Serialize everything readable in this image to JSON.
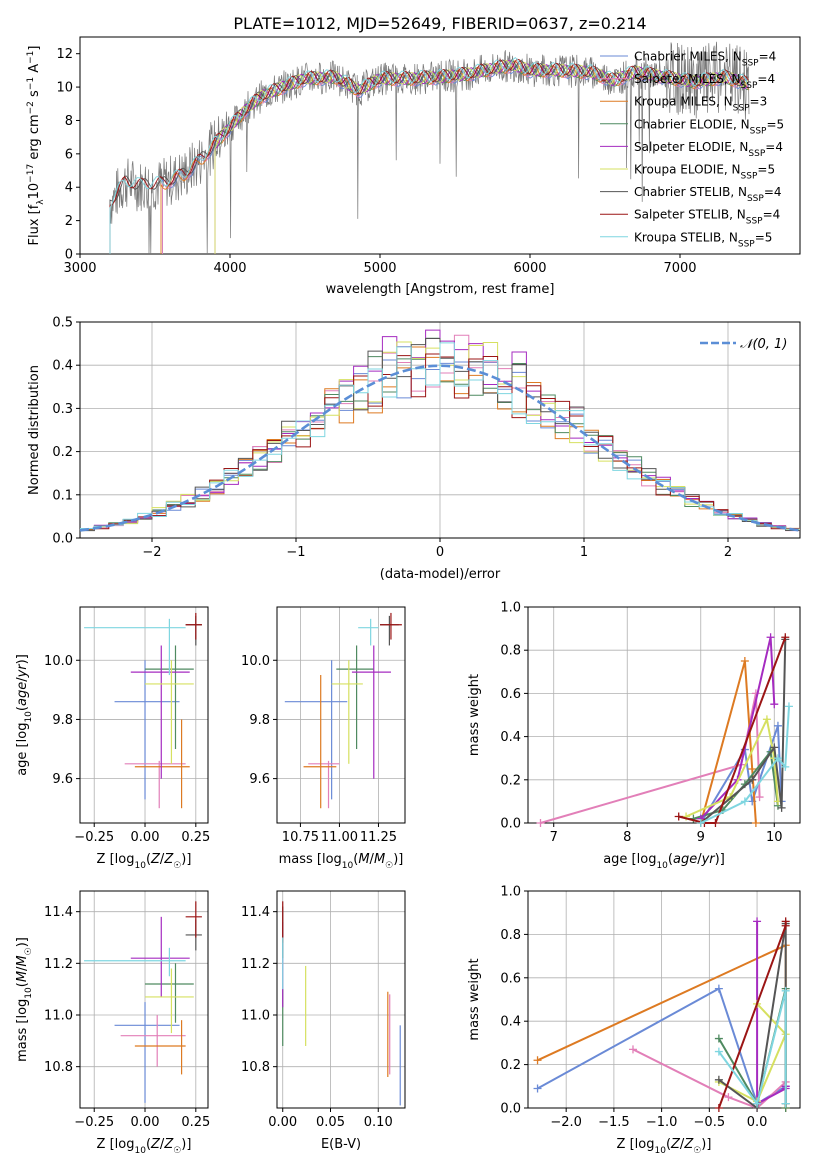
{
  "title": "PLATE=1012, MJD=52649, FIBERID=0637, z=0.214",
  "colors": {
    "Chabrier MILES": "#6a8ad6",
    "Salpeter MILES": "#e27fb8",
    "Kroupa MILES": "#dd7a22",
    "Chabrier ELODIE": "#4f8a60",
    "Salpeter ELODIE": "#a52bc0",
    "Kroupa ELODIE": "#d6e060",
    "Chabrier STELIB": "#555555",
    "Salpeter STELIB": "#9b1515",
    "Kroupa STELIB": "#7fd6e0",
    "normal": "#5b8ed6"
  },
  "chart_data": [
    {
      "id": "spectrum",
      "type": "line",
      "xlabel": "wavelength [Angstrom, rest frame]",
      "ylabel": "Flux [f_λ 10^-17 erg cm^-2 s^-1 A^-1]",
      "xlim": [
        3000,
        7800
      ],
      "ylim": [
        0,
        13
      ],
      "xticks": [
        "3000",
        "4000",
        "5000",
        "6000",
        "7000"
      ],
      "yticks": [
        "0",
        "2",
        "4",
        "6",
        "8",
        "10",
        "12"
      ],
      "grid": false,
      "legend_position": "right",
      "legend": [
        {
          "text": "Chabrier MILES, N",
          "sub": "SSP",
          "eq": "=4"
        },
        {
          "text": "Salpeter MILES, N",
          "sub": "SSP",
          "eq": "=4"
        },
        {
          "text": "Kroupa MILES, N",
          "sub": "SSP",
          "eq": "=3"
        },
        {
          "text": "Chabrier ELODIE, N",
          "sub": "SSP",
          "eq": "=5"
        },
        {
          "text": "Salpeter ELODIE, N",
          "sub": "SSP",
          "eq": "=4"
        },
        {
          "text": "Kroupa ELODIE, N",
          "sub": "SSP",
          "eq": "=5"
        },
        {
          "text": "Chabrier STELIB, N",
          "sub": "SSP",
          "eq": "=4"
        },
        {
          "text": "Salpeter STELIB, N",
          "sub": "SSP",
          "eq": "=4"
        },
        {
          "text": "Kroupa STELIB, N",
          "sub": "SSP",
          "eq": "=5"
        }
      ],
      "model_curve": {
        "x": [
          3200,
          3300,
          3400,
          3550,
          3700,
          3800,
          3900,
          4000,
          4100,
          4200,
          4350,
          4500,
          4700,
          4860,
          5000,
          5200,
          5400,
          5600,
          5800,
          5900,
          6000,
          6200,
          6400,
          6560,
          6700,
          6900,
          7100,
          7300,
          7450
        ],
        "y": [
          3.0,
          4.3,
          4.1,
          4.2,
          4.8,
          5.6,
          6.6,
          7.6,
          8.6,
          9.4,
          10.0,
          10.5,
          10.6,
          9.8,
          10.5,
          10.5,
          10.6,
          10.8,
          11.2,
          11.3,
          11.0,
          11.0,
          10.9,
          10.4,
          10.9,
          10.6,
          10.3,
          10.6,
          10.2
        ]
      },
      "model_starts": {
        "Chabrier MILES": 3550,
        "Salpeter MILES": 3550,
        "Kroupa MILES": 3540,
        "Chabrier ELODIE": 3900,
        "Salpeter ELODIE": 3900,
        "Kroupa ELODIE": 3900,
        "Chabrier STELIB": 3200,
        "Salpeter STELIB": 3200,
        "Kroupa STELIB": 3200
      }
    },
    {
      "id": "residuals",
      "type": "step",
      "xlabel": "(data-model)/error",
      "ylabel": "Normed distribution",
      "xlim": [
        -2.5,
        2.5
      ],
      "ylim": [
        0,
        0.5
      ],
      "xticks": [
        "−2",
        "−1",
        "0",
        "1",
        "2"
      ],
      "yticks": [
        "0.0",
        "0.1",
        "0.2",
        "0.3",
        "0.4",
        "0.5"
      ],
      "grid": true,
      "legend_position": "top-right",
      "legend": "𝒩(0, 1)",
      "bin_width": 0.1,
      "bin_start": -2.5,
      "series_offsets": [
        0.0,
        0.01,
        -0.012,
        0.006,
        0.04,
        0.022,
        0.018,
        -0.008,
        -0.004
      ]
    },
    {
      "id": "age-vs-Z",
      "type": "scatter",
      "xlabel": "Z [log10(Z/Z☉)]",
      "ylabel": "age [log10(age/yr)]",
      "xlim": [
        -0.32,
        0.31
      ],
      "ylim": [
        9.45,
        10.18
      ],
      "xticks": [
        "−0.25",
        "0.00",
        "0.25"
      ],
      "yticks": [
        "9.6",
        "9.8",
        "10.0"
      ],
      "grid": true,
      "points": [
        {
          "s": "Chabrier MILES",
          "x": 0.0,
          "y": 9.86,
          "xe": [
            -0.15,
            0.17
          ],
          "ye": [
            9.53,
            10.0
          ]
        },
        {
          "s": "Salpeter MILES",
          "x": 0.07,
          "y": 9.65,
          "xe": [
            -0.1,
            0.2
          ],
          "ye": [
            9.5,
            9.66
          ]
        },
        {
          "s": "Kroupa MILES",
          "x": 0.18,
          "y": 9.64,
          "xe": [
            -0.05,
            0.22
          ],
          "ye": [
            9.5,
            9.8
          ]
        },
        {
          "s": "Chabrier ELODIE",
          "x": 0.15,
          "y": 9.97,
          "xe": [
            0.0,
            0.24
          ],
          "ye": [
            9.7,
            10.05
          ]
        },
        {
          "s": "Salpeter ELODIE",
          "x": 0.08,
          "y": 9.96,
          "xe": [
            -0.07,
            0.22
          ],
          "ye": [
            9.6,
            10.05
          ]
        },
        {
          "s": "Kroupa ELODIE",
          "x": 0.13,
          "y": 9.92,
          "xe": [
            0.0,
            0.24
          ],
          "ye": [
            9.65,
            10.0
          ]
        },
        {
          "s": "Chabrier STELIB",
          "x": 0.25,
          "y": 10.12,
          "xe": [
            0.2,
            0.28
          ],
          "ye": [
            10.05,
            10.15
          ]
        },
        {
          "s": "Salpeter STELIB",
          "x": 0.25,
          "y": 10.12,
          "xe": [
            0.2,
            0.28
          ],
          "ye": [
            10.07,
            10.16
          ]
        },
        {
          "s": "Kroupa STELIB",
          "x": 0.12,
          "y": 10.11,
          "xe": [
            -0.3,
            0.2
          ],
          "ye": [
            9.95,
            10.14
          ]
        }
      ]
    },
    {
      "id": "age-vs-mass",
      "type": "scatter",
      "xlabel": "mass [log10(M/M☉)]",
      "ylabel": "",
      "xlim": [
        10.6,
        11.42
      ],
      "ylim": [
        9.45,
        10.18
      ],
      "xticks": [
        "10.75",
        "11.00",
        "11.25"
      ],
      "yticks": [
        "9.6",
        "9.8",
        "10.0"
      ],
      "grid": true,
      "points": [
        {
          "s": "Chabrier MILES",
          "x": 10.95,
          "y": 9.86,
          "xe": [
            10.65,
            11.05
          ],
          "ye": [
            9.53,
            10.0
          ]
        },
        {
          "s": "Salpeter MILES",
          "x": 10.93,
          "y": 9.65,
          "xe": [
            10.8,
            11.0
          ],
          "ye": [
            9.5,
            9.66
          ]
        },
        {
          "s": "Kroupa MILES",
          "x": 10.88,
          "y": 9.64,
          "xe": [
            10.77,
            10.98
          ],
          "ye": [
            9.5,
            9.95
          ]
        },
        {
          "s": "Chabrier ELODIE",
          "x": 11.11,
          "y": 9.97,
          "xe": [
            10.98,
            11.22
          ],
          "ye": [
            9.7,
            10.05
          ]
        },
        {
          "s": "Salpeter ELODIE",
          "x": 11.22,
          "y": 9.96,
          "xe": [
            11.08,
            11.33
          ],
          "ye": [
            9.6,
            10.05
          ]
        },
        {
          "s": "Kroupa ELODIE",
          "x": 11.06,
          "y": 9.92,
          "xe": [
            10.95,
            11.15
          ],
          "ye": [
            9.65,
            10.0
          ]
        },
        {
          "s": "Chabrier STELIB",
          "x": 11.32,
          "y": 10.12,
          "xe": [
            11.26,
            11.38
          ],
          "ye": [
            10.05,
            10.15
          ]
        },
        {
          "s": "Salpeter STELIB",
          "x": 11.33,
          "y": 10.12,
          "xe": [
            11.26,
            11.4
          ],
          "ye": [
            10.07,
            10.16
          ]
        },
        {
          "s": "Kroupa STELIB",
          "x": 11.2,
          "y": 10.11,
          "xe": [
            11.12,
            11.25
          ],
          "ye": [
            10.05,
            10.14
          ]
        }
      ]
    },
    {
      "id": "weight-vs-age",
      "type": "line",
      "xlabel": "age [log10(age/yr)]",
      "ylabel": "mass weight",
      "xlim": [
        6.65,
        10.35
      ],
      "ylim": [
        0,
        1
      ],
      "xticks": [
        "7",
        "8",
        "9",
        "10"
      ],
      "yticks": [
        "0.0",
        "0.2",
        "0.4",
        "0.6",
        "0.8",
        "1.0"
      ],
      "grid": true,
      "series": [
        {
          "s": "Chabrier MILES",
          "x": [
            9.0,
            9.6,
            9.7,
            10.05,
            10.1
          ],
          "y": [
            0.0,
            0.34,
            0.1,
            0.45,
            0.1
          ]
        },
        {
          "s": "Salpeter MILES",
          "x": [
            6.82,
            9.55,
            9.75,
            9.8
          ],
          "y": [
            0.0,
            0.27,
            0.6,
            0.12
          ]
        },
        {
          "s": "Kroupa MILES",
          "x": [
            9.0,
            9.6,
            9.7,
            9.75
          ],
          "y": [
            0.0,
            0.75,
            0.25,
            0.0
          ]
        },
        {
          "s": "Chabrier ELODIE",
          "x": [
            8.9,
            9.3,
            9.6,
            9.95,
            10.05
          ],
          "y": [
            0.02,
            0.06,
            0.18,
            0.33,
            0.08
          ]
        },
        {
          "s": "Salpeter ELODIE",
          "x": [
            9.0,
            9.5,
            9.95,
            10.0
          ],
          "y": [
            0.02,
            0.2,
            0.86,
            0.55
          ]
        },
        {
          "s": "Kroupa ELODIE",
          "x": [
            8.8,
            9.4,
            9.9,
            10.0,
            10.05
          ],
          "y": [
            0.03,
            0.12,
            0.48,
            0.3,
            0.1
          ]
        },
        {
          "s": "Chabrier STELIB",
          "x": [
            9.0,
            9.7,
            10.0,
            10.1,
            10.15
          ],
          "y": [
            0.0,
            0.2,
            0.35,
            0.07,
            0.85
          ]
        },
        {
          "s": "Salpeter STELIB",
          "x": [
            8.7,
            9.05,
            9.2,
            10.15
          ],
          "y": [
            0.03,
            0.0,
            0.0,
            0.86
          ]
        },
        {
          "s": "Kroupa STELIB",
          "x": [
            9.0,
            9.6,
            10.05,
            10.15,
            10.2
          ],
          "y": [
            0.0,
            0.1,
            0.3,
            0.26,
            0.54
          ]
        }
      ]
    },
    {
      "id": "mass-vs-Z",
      "type": "scatter",
      "xlabel": "Z [log10(Z/Z☉)]",
      "ylabel": "mass [log10(M/M☉)]",
      "xlim": [
        -0.32,
        0.31
      ],
      "ylim": [
        10.64,
        11.48
      ],
      "xticks": [
        "−0.25",
        "0.00",
        "0.25"
      ],
      "yticks": [
        "10.8",
        "11.0",
        "11.2",
        "11.4"
      ],
      "grid": true,
      "points": [
        {
          "s": "Chabrier MILES",
          "x": 0.0,
          "y": 10.96,
          "xe": [
            -0.15,
            0.17
          ],
          "ye": [
            10.66,
            11.05
          ]
        },
        {
          "s": "Salpeter MILES",
          "x": 0.06,
          "y": 10.92,
          "xe": [
            -0.12,
            0.2
          ],
          "ye": [
            10.8,
            11.0
          ]
        },
        {
          "s": "Kroupa MILES",
          "x": 0.18,
          "y": 10.88,
          "xe": [
            -0.05,
            0.2
          ],
          "ye": [
            10.77,
            10.98
          ]
        },
        {
          "s": "Chabrier ELODIE",
          "x": 0.15,
          "y": 11.12,
          "xe": [
            0.0,
            0.24
          ],
          "ye": [
            10.97,
            11.2
          ]
        },
        {
          "s": "Salpeter ELODIE",
          "x": 0.08,
          "y": 11.22,
          "xe": [
            -0.07,
            0.22
          ],
          "ye": [
            11.07,
            11.38
          ]
        },
        {
          "s": "Kroupa ELODIE",
          "x": 0.13,
          "y": 11.07,
          "xe": [
            0.0,
            0.24
          ],
          "ye": [
            10.93,
            11.18
          ]
        },
        {
          "s": "Chabrier STELIB",
          "x": 0.25,
          "y": 11.31,
          "xe": [
            0.2,
            0.28
          ],
          "ye": [
            11.25,
            11.37
          ]
        },
        {
          "s": "Salpeter STELIB",
          "x": 0.25,
          "y": 11.38,
          "xe": [
            0.2,
            0.28
          ],
          "ye": [
            11.3,
            11.44
          ]
        },
        {
          "s": "Kroupa STELIB",
          "x": 0.12,
          "y": 11.21,
          "xe": [
            -0.3,
            0.2
          ],
          "ye": [
            11.15,
            11.26
          ]
        }
      ]
    },
    {
      "id": "mass-vs-ebv",
      "type": "scatter",
      "xlabel": "E(B-V)",
      "ylabel": "",
      "xlim": [
        -0.006,
        0.128
      ],
      "ylim": [
        10.64,
        11.48
      ],
      "xticks": [
        "0.00",
        "0.05",
        "0.10"
      ],
      "yticks": [
        "10.8",
        "11.0",
        "11.2",
        "11.4"
      ],
      "grid": true,
      "points": [
        {
          "s": "Chabrier MILES",
          "x": 0.123,
          "y": 10.8,
          "ye": [
            10.65,
            10.96
          ]
        },
        {
          "s": "Salpeter MILES",
          "x": 0.112,
          "y": 10.92,
          "ye": [
            10.77,
            11.08
          ]
        },
        {
          "s": "Kroupa MILES",
          "x": 0.11,
          "y": 10.93,
          "ye": [
            10.76,
            11.09
          ]
        },
        {
          "s": "Chabrier ELODIE",
          "x": 0.0,
          "y": 10.98,
          "ye": [
            10.88,
            11.1
          ]
        },
        {
          "s": "Salpeter ELODIE",
          "x": 0.0,
          "y": 11.2,
          "ye": [
            11.03,
            11.36
          ]
        },
        {
          "s": "Kroupa ELODIE",
          "x": 0.024,
          "y": 11.03,
          "ye": [
            10.88,
            11.19
          ]
        },
        {
          "s": "Chabrier STELIB",
          "x": 0.0,
          "y": 11.32,
          "ye": [
            11.22,
            11.42
          ]
        },
        {
          "s": "Salpeter STELIB",
          "x": 0.0,
          "y": 11.36,
          "ye": [
            11.28,
            11.44
          ]
        },
        {
          "s": "Kroupa STELIB",
          "x": 0.0,
          "y": 11.2,
          "ye": [
            11.1,
            11.3
          ]
        }
      ]
    },
    {
      "id": "weight-vs-Z",
      "type": "line",
      "xlabel": "Z [log10(Z/Z☉)]",
      "ylabel": "mass weight",
      "xlim": [
        -2.4,
        0.45
      ],
      "ylim": [
        0,
        1
      ],
      "xticks": [
        "−2.0",
        "−1.5",
        "−1.0",
        "−0.5",
        "0.0"
      ],
      "yticks": [
        "0.0",
        "0.2",
        "0.4",
        "0.6",
        "0.8",
        "1.0"
      ],
      "grid": true,
      "series": [
        {
          "s": "Chabrier MILES",
          "x": [
            -2.3,
            -0.4,
            0.0,
            0.3
          ],
          "y": [
            0.09,
            0.55,
            0.02,
            0.1
          ]
        },
        {
          "s": "Salpeter MILES",
          "x": [
            -1.3,
            -0.3,
            0.0,
            0.3
          ],
          "y": [
            0.27,
            0.05,
            0.0,
            0.12
          ]
        },
        {
          "s": "Kroupa MILES",
          "x": [
            -2.3,
            0.3,
            0.3
          ],
          "y": [
            0.22,
            0.75,
            0.0
          ]
        },
        {
          "s": "Chabrier ELODIE",
          "x": [
            -0.4,
            0.0,
            0.3,
            0.3
          ],
          "y": [
            0.32,
            0.02,
            0.55,
            0.0
          ]
        },
        {
          "s": "Salpeter ELODIE",
          "x": [
            0.0,
            0.0,
            0.3,
            0.3
          ],
          "y": [
            0.86,
            0.02,
            0.09,
            0.1
          ]
        },
        {
          "s": "Kroupa ELODIE",
          "x": [
            -0.4,
            0.0,
            0.3,
            0.0
          ],
          "y": [
            0.12,
            0.03,
            0.34,
            0.48
          ]
        },
        {
          "s": "Chabrier STELIB",
          "x": [
            -0.4,
            0.0,
            0.3,
            0.3
          ],
          "y": [
            0.13,
            0.0,
            0.85,
            0.02
          ]
        },
        {
          "s": "Salpeter STELIB",
          "x": [
            -0.4,
            0.3,
            0.3
          ],
          "y": [
            0.0,
            0.84,
            0.86
          ]
        },
        {
          "s": "Kroupa STELIB",
          "x": [
            -0.4,
            0.0,
            0.3,
            0.3
          ],
          "y": [
            0.26,
            0.02,
            0.54,
            0.02
          ]
        }
      ]
    }
  ]
}
